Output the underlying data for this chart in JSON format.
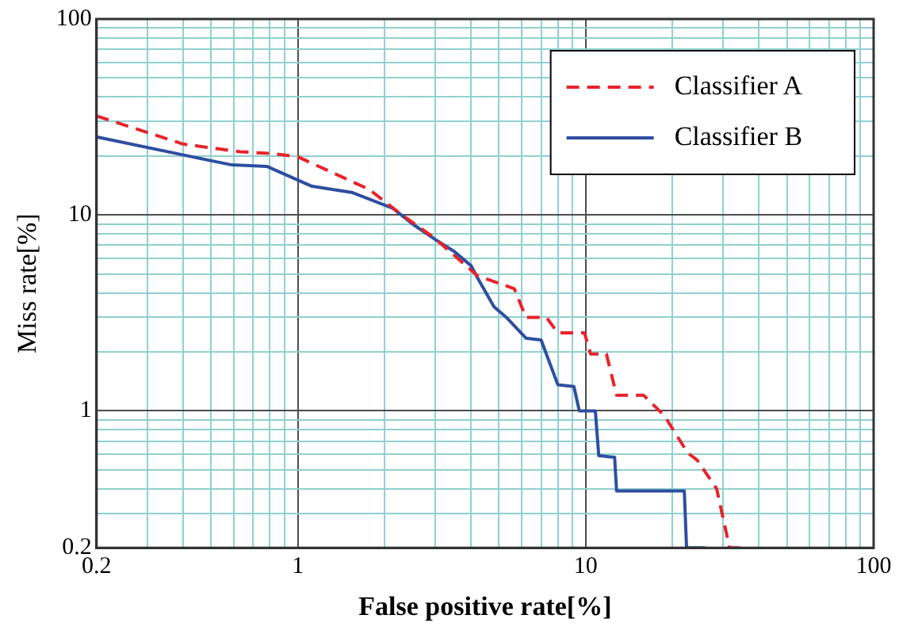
{
  "chart_data": {
    "type": "line",
    "xlabel": "False positive rate[%]",
    "ylabel": "Miss rate[%]",
    "log": "xy",
    "grid": true,
    "legend": "top right",
    "marker": "none",
    "xlim": [
      0.2,
      100
    ],
    "ylim": [
      0.2,
      100
    ],
    "xticks": [
      0.2,
      {
        "value": 0.3,
        "label": null
      },
      {
        "value": 0.4,
        "label": null
      },
      {
        "value": 0.5,
        "label": null
      },
      {
        "value": 0.6,
        "label": null
      },
      {
        "value": 0.7,
        "label": null
      },
      {
        "value": 0.8,
        "label": null
      },
      {
        "value": 0.9,
        "label": null
      },
      1,
      {
        "value": 2,
        "label": null
      },
      {
        "value": 3,
        "label": null
      },
      {
        "value": 4,
        "label": null
      },
      {
        "value": 5,
        "label": null
      },
      {
        "value": 6,
        "label": null
      },
      {
        "value": 7,
        "label": null
      },
      {
        "value": 8,
        "label": null
      },
      {
        "value": 9,
        "label": null
      },
      10,
      {
        "value": 20,
        "label": null
      },
      {
        "value": 30,
        "label": null
      },
      {
        "value": 40,
        "label": null
      },
      {
        "value": 50,
        "label": null
      },
      {
        "value": 60,
        "label": null
      },
      {
        "value": 70,
        "label": null
      },
      {
        "value": 80,
        "label": null
      },
      {
        "value": 90,
        "label": null
      },
      100
    ],
    "yticks": [
      0.2,
      {
        "value": 0.3,
        "label": null
      },
      {
        "value": 0.4,
        "label": null
      },
      {
        "value": 0.5,
        "label": null
      },
      {
        "value": 0.6,
        "label": null
      },
      {
        "value": 0.7,
        "label": null
      },
      {
        "value": 0.8,
        "label": null
      },
      {
        "value": 0.9,
        "label": null
      },
      1,
      {
        "value": 2,
        "label": null
      },
      {
        "value": 3,
        "label": null
      },
      {
        "value": 4,
        "label": null
      },
      {
        "value": 5,
        "label": null
      },
      {
        "value": 6,
        "label": null
      },
      {
        "value": 7,
        "label": null
      },
      {
        "value": 8,
        "label": null
      },
      {
        "value": 9,
        "label": null
      },
      10,
      {
        "value": 20,
        "label": null
      },
      {
        "value": 30,
        "label": null
      },
      {
        "value": 40,
        "label": null
      },
      {
        "value": 50,
        "label": null
      },
      {
        "value": 60,
        "label": null
      },
      {
        "value": 70,
        "label": null
      },
      {
        "value": 80,
        "label": null
      },
      {
        "value": 90,
        "label": null
      },
      100
    ],
    "series": [
      {
        "name": "Classifier A",
        "color": "#e8232a",
        "line_style": "dashed",
        "x": [
          0.2,
          0.4,
          0.63,
          0.81,
          1,
          1.77,
          2.3,
          2.96,
          4.2,
          5.65,
          6.2,
          7.3,
          8,
          9.9,
          10.4,
          11.8,
          12.8,
          15.9,
          18.8,
          22.6,
          24.4,
          28.5,
          31.6,
          36
        ],
        "values": [
          32,
          23,
          21,
          20.6,
          19.8,
          13.5,
          10,
          7.7,
          4.9,
          4.2,
          3,
          3,
          2.5,
          2.5,
          1.95,
          1.95,
          1.2,
          1.2,
          0.94,
          0.61,
          0.56,
          0.4,
          0.2,
          0.2
        ]
      },
      {
        "name": "Classifier B",
        "color": "#2e4ea0",
        "line_style": "solid",
        "x": [
          0.2,
          0.43,
          0.59,
          0.78,
          1.12,
          1.55,
          2.14,
          2.5,
          3,
          3.5,
          4,
          4.2,
          4.8,
          5.3,
          6.2,
          7,
          7.3,
          8,
          9.1,
          9.5,
          10.8,
          11.1,
          12.6,
          12.8,
          22,
          22.4,
          26
        ],
        "values": [
          25,
          19.8,
          18,
          17.7,
          14,
          13,
          10.8,
          9,
          7.5,
          6.5,
          5.5,
          4.8,
          3.4,
          3,
          2.35,
          2.3,
          1.95,
          1.36,
          1.33,
          1,
          1,
          0.59,
          0.58,
          0.39,
          0.39,
          0.2,
          0.2
        ]
      }
    ]
  }
}
